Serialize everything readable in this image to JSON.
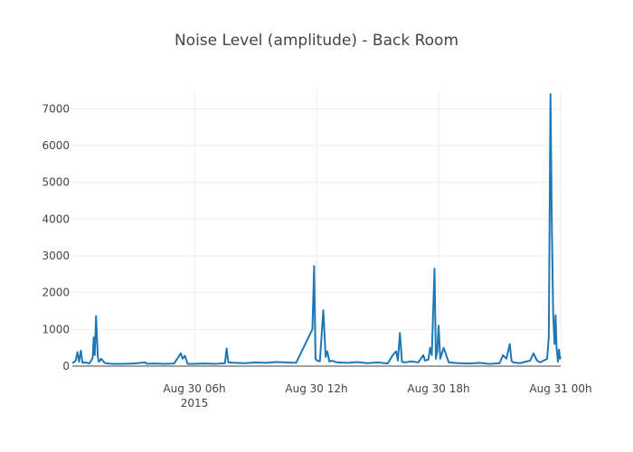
{
  "chart_data": {
    "type": "line",
    "title": "Noise Level (amplitude) - Back Room",
    "xlabel": "",
    "ylabel": "",
    "x_axis": {
      "type": "time",
      "start": "2015-08-30T00:00",
      "end": "2015-08-31T00:00",
      "ticks": [
        {
          "value": "2015-08-30T06:00",
          "label": "Aug 30 06h",
          "sublabel": "2015"
        },
        {
          "value": "2015-08-30T12:00",
          "label": "Aug 30 12h",
          "sublabel": ""
        },
        {
          "value": "2015-08-30T18:00",
          "label": "Aug 30 18h",
          "sublabel": ""
        },
        {
          "value": "2015-08-31T00:00",
          "label": "Aug 31 00h",
          "sublabel": ""
        }
      ]
    },
    "y_axis": {
      "range": [
        0,
        7500
      ],
      "ticks": [
        0,
        1000,
        2000,
        3000,
        4000,
        5000,
        6000,
        7000
      ]
    },
    "grid": true,
    "color": "#1f77b4",
    "series": [
      {
        "x": [
          "2015-08-30T00:00",
          "2015-08-30T00:10",
          "2015-08-30T00:15",
          "2015-08-30T00:20",
          "2015-08-30T00:25",
          "2015-08-30T00:30",
          "2015-08-30T00:40",
          "2015-08-30T00:50",
          "2015-08-30T01:00",
          "2015-08-30T01:03",
          "2015-08-30T01:06",
          "2015-08-30T01:10",
          "2015-08-30T01:15",
          "2015-08-30T01:18",
          "2015-08-30T01:22",
          "2015-08-30T01:25",
          "2015-08-30T01:35",
          "2015-08-30T01:45",
          "2015-08-30T02:00",
          "2015-08-30T02:30",
          "2015-08-30T03:00",
          "2015-08-30T03:35",
          "2015-08-30T03:40",
          "2015-08-30T04:00",
          "2015-08-30T04:30",
          "2015-08-30T05:00",
          "2015-08-30T05:20",
          "2015-08-30T05:25",
          "2015-08-30T05:32",
          "2015-08-30T05:40",
          "2015-08-30T06:00",
          "2015-08-30T06:30",
          "2015-08-30T07:00",
          "2015-08-30T07:30",
          "2015-08-30T07:35",
          "2015-08-30T07:40",
          "2015-08-30T08:00",
          "2015-08-30T08:30",
          "2015-08-30T09:00",
          "2015-08-30T09:30",
          "2015-08-30T10:00",
          "2015-08-30T10:30",
          "2015-08-30T11:00",
          "2015-08-30T11:48",
          "2015-08-30T11:53",
          "2015-08-30T11:57",
          "2015-08-30T12:02",
          "2015-08-30T12:10",
          "2015-08-30T12:20",
          "2015-08-30T12:27",
          "2015-08-30T12:32",
          "2015-08-30T12:38",
          "2015-08-30T12:45",
          "2015-08-30T13:00",
          "2015-08-30T13:30",
          "2015-08-30T14:00",
          "2015-08-30T14:30",
          "2015-08-30T15:00",
          "2015-08-30T15:30",
          "2015-08-30T15:45",
          "2015-08-30T15:55",
          "2015-08-30T16:00",
          "2015-08-30T16:06",
          "2015-08-30T16:12",
          "2015-08-30T16:20",
          "2015-08-30T16:40",
          "2015-08-30T17:00",
          "2015-08-30T17:15",
          "2015-08-30T17:20",
          "2015-08-30T17:30",
          "2015-08-30T17:35",
          "2015-08-30T17:40",
          "2015-08-30T17:48",
          "2015-08-30T17:52",
          "2015-08-30T17:56",
          "2015-08-30T18:00",
          "2015-08-30T18:05",
          "2015-08-30T18:15",
          "2015-08-30T18:30",
          "2015-08-30T19:00",
          "2015-08-30T19:30",
          "2015-08-30T20:00",
          "2015-08-30T20:30",
          "2015-08-30T21:00",
          "2015-08-30T21:10",
          "2015-08-30T21:20",
          "2015-08-30T21:30",
          "2015-08-30T21:35",
          "2015-08-30T21:40",
          "2015-08-30T22:00",
          "2015-08-30T22:30",
          "2015-08-30T22:40",
          "2015-08-30T22:50",
          "2015-08-30T23:00",
          "2015-08-30T23:20",
          "2015-08-30T23:25",
          "2015-08-30T23:30",
          "2015-08-30T23:34",
          "2015-08-30T23:38",
          "2015-08-30T23:42",
          "2015-08-30T23:45",
          "2015-08-30T23:48",
          "2015-08-30T23:52",
          "2015-08-30T23:55",
          "2015-08-30T23:58",
          "2015-08-31T00:00"
        ],
        "y": [
          80,
          150,
          380,
          120,
          420,
          90,
          100,
          70,
          220,
          780,
          300,
          1360,
          260,
          120,
          150,
          200,
          90,
          70,
          60,
          60,
          70,
          100,
          60,
          70,
          60,
          70,
          350,
          200,
          280,
          60,
          60,
          70,
          60,
          80,
          480,
          100,
          90,
          80,
          100,
          90,
          110,
          100,
          90,
          1000,
          2720,
          200,
          150,
          130,
          1520,
          250,
          400,
          120,
          150,
          100,
          90,
          110,
          80,
          100,
          70,
          300,
          400,
          150,
          900,
          120,
          100,
          130,
          100,
          300,
          150,
          180,
          500,
          300,
          2650,
          200,
          400,
          1100,
          200,
          500,
          100,
          80,
          70,
          90,
          60,
          80,
          300,
          200,
          600,
          150,
          100,
          80,
          150,
          350,
          150,
          100,
          200,
          800,
          7400,
          3800,
          1400,
          600,
          1380,
          500,
          120,
          450,
          200,
          260
        ]
      }
    ]
  }
}
